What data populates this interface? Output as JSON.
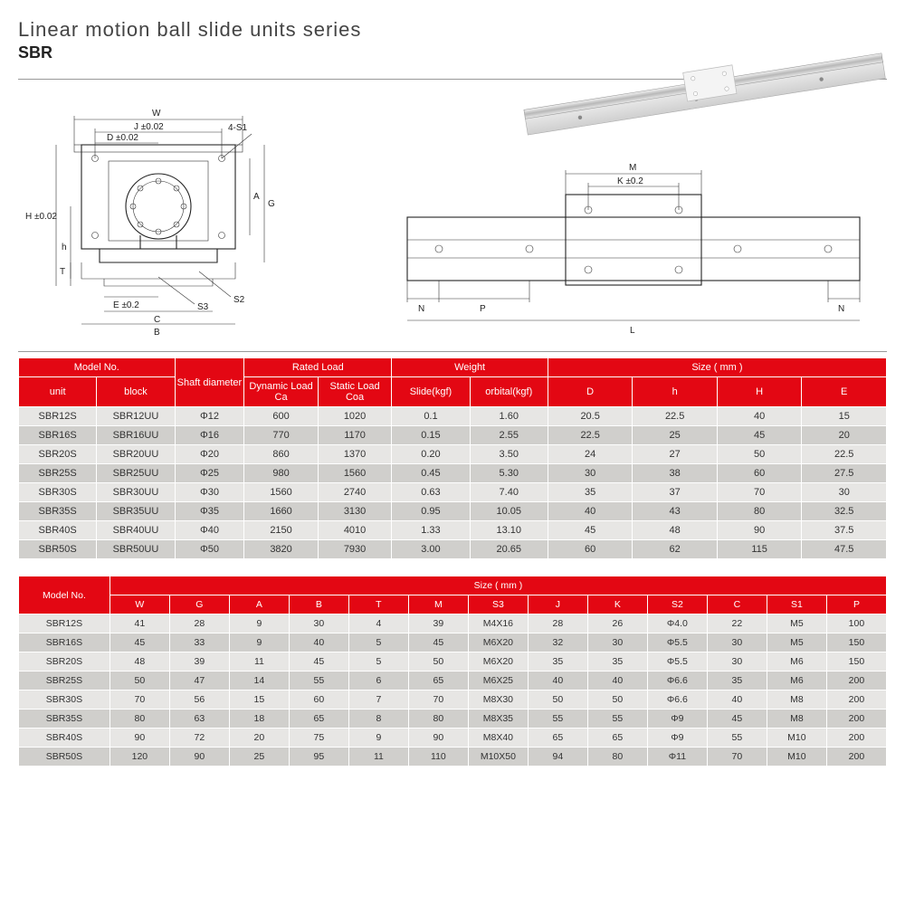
{
  "header": {
    "title": "Linear motion ball slide units series",
    "subtitle": "SBR"
  },
  "diagram": {
    "labels": {
      "W": "W",
      "J": "J ±0.02",
      "fourS1": "4-S1",
      "D": "D ±0.02",
      "A": "A",
      "G": "G",
      "H": "H ±0.02",
      "h": "h",
      "T": "T",
      "E": "E ±0.2",
      "C": "C",
      "B": "B",
      "S2": "S2",
      "S3": "S3",
      "M": "M",
      "K": "K ±0.2",
      "N": "N",
      "P": "P",
      "L": "L"
    },
    "stroke": "#222222",
    "thin": 0.6
  },
  "table1": {
    "headers": {
      "model": "Model No.",
      "unit": "unit",
      "block": "block",
      "shaft": "Shaft diameter",
      "rated": "Rated Load",
      "dyn": "Dynamic Load Ca",
      "stat": "Static Load Coa",
      "weight": "Weight",
      "slide": "Slide(kgf)",
      "orbital": "orbital(kgf)",
      "size": "Size ( mm )",
      "D": "D",
      "h": "h",
      "H": "H",
      "E": "E"
    },
    "rows": [
      [
        "SBR12S",
        "SBR12UU",
        "Φ12",
        "600",
        "1020",
        "0.1",
        "1.60",
        "20.5",
        "22.5",
        "40",
        "15"
      ],
      [
        "SBR16S",
        "SBR16UU",
        "Φ16",
        "770",
        "1170",
        "0.15",
        "2.55",
        "22.5",
        "25",
        "45",
        "20"
      ],
      [
        "SBR20S",
        "SBR20UU",
        "Φ20",
        "860",
        "1370",
        "0.20",
        "3.50",
        "24",
        "27",
        "50",
        "22.5"
      ],
      [
        "SBR25S",
        "SBR25UU",
        "Φ25",
        "980",
        "1560",
        "0.45",
        "5.30",
        "30",
        "38",
        "60",
        "27.5"
      ],
      [
        "SBR30S",
        "SBR30UU",
        "Φ30",
        "1560",
        "2740",
        "0.63",
        "7.40",
        "35",
        "37",
        "70",
        "30"
      ],
      [
        "SBR35S",
        "SBR35UU",
        "Φ35",
        "1660",
        "3130",
        "0.95",
        "10.05",
        "40",
        "43",
        "80",
        "32.5"
      ],
      [
        "SBR40S",
        "SBR40UU",
        "Φ40",
        "2150",
        "4010",
        "1.33",
        "13.10",
        "45",
        "48",
        "90",
        "37.5"
      ],
      [
        "SBR50S",
        "SBR50UU",
        "Φ50",
        "3820",
        "7930",
        "3.00",
        "20.65",
        "60",
        "62",
        "115",
        "47.5"
      ]
    ]
  },
  "table2": {
    "headers": {
      "model": "Model No.",
      "size": "Size ( mm )",
      "W": "W",
      "G": "G",
      "A": "A",
      "B": "B",
      "T": "T",
      "M": "M",
      "S3": "S3",
      "J": "J",
      "K": "K",
      "S2": "S2",
      "C": "C",
      "S1": "S1",
      "P": "P"
    },
    "rows": [
      [
        "SBR12S",
        "41",
        "28",
        "9",
        "30",
        "4",
        "39",
        "M4X16",
        "28",
        "26",
        "Φ4.0",
        "22",
        "M5",
        "100"
      ],
      [
        "SBR16S",
        "45",
        "33",
        "9",
        "40",
        "5",
        "45",
        "M6X20",
        "32",
        "30",
        "Φ5.5",
        "30",
        "M5",
        "150"
      ],
      [
        "SBR20S",
        "48",
        "39",
        "11",
        "45",
        "5",
        "50",
        "M6X20",
        "35",
        "35",
        "Φ5.5",
        "30",
        "M6",
        "150"
      ],
      [
        "SBR25S",
        "50",
        "47",
        "14",
        "55",
        "6",
        "65",
        "M6X25",
        "40",
        "40",
        "Φ6.6",
        "35",
        "M6",
        "200"
      ],
      [
        "SBR30S",
        "70",
        "56",
        "15",
        "60",
        "7",
        "70",
        "M8X30",
        "50",
        "50",
        "Φ6.6",
        "40",
        "M8",
        "200"
      ],
      [
        "SBR35S",
        "80",
        "63",
        "18",
        "65",
        "8",
        "80",
        "M8X35",
        "55",
        "55",
        "Φ9",
        "45",
        "M8",
        "200"
      ],
      [
        "SBR40S",
        "90",
        "72",
        "20",
        "75",
        "9",
        "90",
        "M8X40",
        "65",
        "65",
        "Φ9",
        "55",
        "M10",
        "200"
      ],
      [
        "SBR50S",
        "120",
        "90",
        "25",
        "95",
        "11",
        "110",
        "M10X50",
        "94",
        "80",
        "Φ11",
        "70",
        "M10",
        "200"
      ]
    ]
  },
  "colors": {
    "headerRed": "#e30713",
    "rowOdd": "#e7e6e4",
    "rowEven": "#d0cfcc",
    "white": "#ffffff"
  }
}
